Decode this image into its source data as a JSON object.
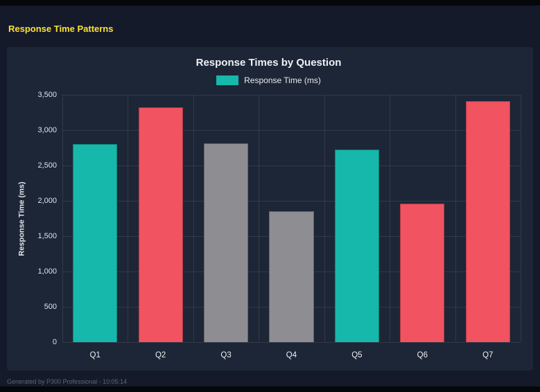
{
  "page": {
    "title": "Response Time Patterns",
    "footer": "Generated by P300 Professional - 10:05:14"
  },
  "chart_data": {
    "type": "bar",
    "title": "Response Times by Question",
    "categories": [
      "Q1",
      "Q2",
      "Q3",
      "Q4",
      "Q5",
      "Q6",
      "Q7"
    ],
    "values": [
      2800,
      3325,
      2810,
      1850,
      2730,
      1960,
      3410
    ],
    "bar_colors": [
      "#16b8ab",
      "#f15360",
      "#8d8d92",
      "#8d8d92",
      "#16b8ab",
      "#f15360",
      "#f15360"
    ],
    "xlabel": "",
    "ylabel": "Response Time (ms)",
    "ylim": [
      0,
      3500
    ],
    "ytick_step": 500,
    "grid": true,
    "legend": {
      "label": "Response Time (ms)",
      "color": "#16b8ab",
      "position": "top"
    }
  }
}
